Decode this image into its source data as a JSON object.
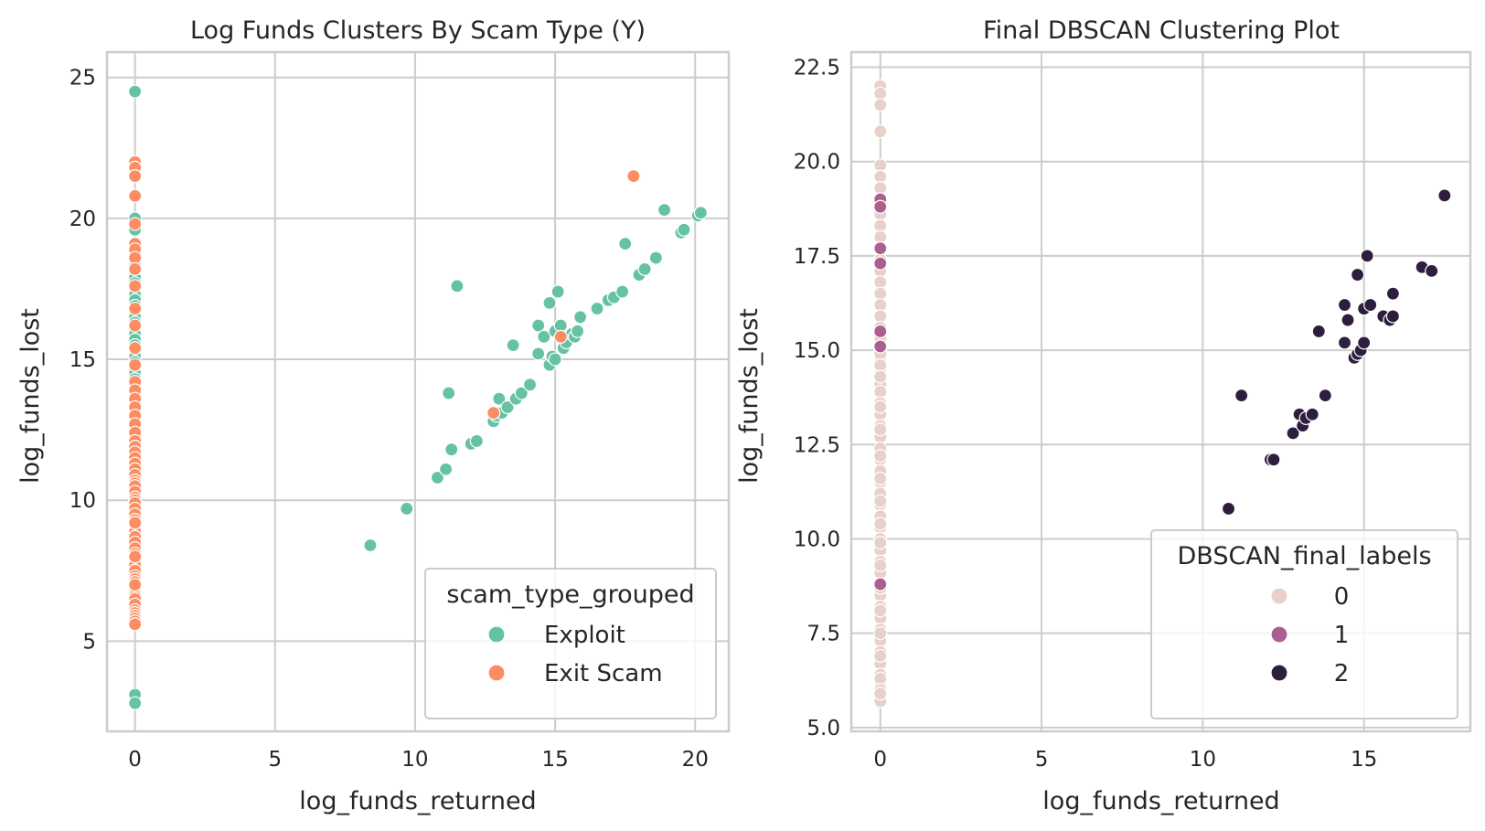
{
  "chart_data": [
    {
      "type": "scatter",
      "title": "Log Funds Clusters By Scam Type (Y)",
      "xlabel": "log_funds_returned",
      "ylabel": "log_funds_lost",
      "xlim": [
        -1.0,
        21.2
      ],
      "ylim": [
        1.8,
        25.9
      ],
      "xticks": [
        "0",
        "5",
        "10",
        "15",
        "20"
      ],
      "yticks": [
        "5",
        "10",
        "15",
        "20",
        "25"
      ],
      "grid": true,
      "legend": {
        "title": "scam_type_grouped",
        "placement": "bottom-right"
      },
      "series": [
        {
          "name": "Exploit",
          "color": "#66c2a5",
          "x": [
            0,
            0,
            0,
            0,
            0,
            0,
            0,
            0,
            0,
            0,
            0,
            0,
            0,
            0,
            0,
            0,
            0,
            0,
            0,
            0,
            0,
            0,
            0,
            0,
            0,
            0,
            0,
            0,
            0,
            0,
            0,
            0,
            0,
            0,
            0,
            0,
            0,
            0,
            0,
            0,
            0,
            0,
            0,
            0,
            0,
            0,
            0,
            0,
            0,
            0,
            0,
            0,
            0,
            0,
            0,
            0,
            0,
            0,
            0,
            0,
            0,
            0,
            0,
            0,
            0,
            8.4,
            9.7,
            10.8,
            11.1,
            11.2,
            11.3,
            11.5,
            12.0,
            12.2,
            12.8,
            12.9,
            13.0,
            13.1,
            13.3,
            13.5,
            13.6,
            13.8,
            14.1,
            14.4,
            14.4,
            14.6,
            14.8,
            14.8,
            14.9,
            15.0,
            15.0,
            15.1,
            15.2,
            15.3,
            15.4,
            15.6,
            15.7,
            15.8,
            15.9,
            16.5,
            16.9,
            17.1,
            17.4,
            17.5,
            18.0,
            18.2,
            18.6,
            18.9,
            19.5,
            19.6,
            20.1,
            20.2
          ],
          "y": [
            24.5,
            20.0,
            19.6,
            19.0,
            18.7,
            18.5,
            18.3,
            18.1,
            17.9,
            17.7,
            17.5,
            17.3,
            17.1,
            16.9,
            16.7,
            16.5,
            16.3,
            16.1,
            15.9,
            15.7,
            15.5,
            15.3,
            15.1,
            14.9,
            14.7,
            14.5,
            14.3,
            14.1,
            13.9,
            13.7,
            13.5,
            13.3,
            13.1,
            12.9,
            12.7,
            12.5,
            12.3,
            12.1,
            11.9,
            11.7,
            11.5,
            11.3,
            11.1,
            10.9,
            10.7,
            10.5,
            10.3,
            10.1,
            9.9,
            9.7,
            9.5,
            9.3,
            9.1,
            8.9,
            8.7,
            8.5,
            8.3,
            8.1,
            7.9,
            7.7,
            7.5,
            7.3,
            7.1,
            3.1,
            2.8,
            8.4,
            9.7,
            10.8,
            11.1,
            13.8,
            11.8,
            17.6,
            12.0,
            12.1,
            12.8,
            13.0,
            13.6,
            13.1,
            13.3,
            15.5,
            13.6,
            13.8,
            14.1,
            16.2,
            15.2,
            15.8,
            17.0,
            14.8,
            15.1,
            16.0,
            15.0,
            17.4,
            16.2,
            15.4,
            15.6,
            15.9,
            15.8,
            16.0,
            16.5,
            16.8,
            17.1,
            17.2,
            17.4,
            19.1,
            18.0,
            18.2,
            18.6,
            20.3,
            19.5,
            19.6,
            20.1,
            20.2
          ]
        },
        {
          "name": "Exit Scam",
          "color": "#fc8d62",
          "x": [
            0,
            0,
            0,
            0,
            0,
            0,
            0,
            0,
            0,
            0,
            0,
            0,
            0,
            0,
            0,
            0,
            0,
            0,
            0,
            0,
            0,
            0,
            0,
            0,
            0,
            0,
            0,
            0,
            0,
            0,
            0,
            0,
            0,
            0,
            0,
            0,
            0,
            0,
            0,
            0,
            0,
            0,
            0,
            0,
            0,
            0,
            0,
            0,
            0,
            0,
            0,
            0,
            0,
            0,
            0,
            0,
            0,
            0,
            0,
            0,
            0,
            0,
            0,
            0,
            0,
            12.8,
            15.2,
            17.8
          ],
          "y": [
            22.0,
            21.8,
            21.5,
            20.8,
            19.8,
            19.1,
            18.9,
            18.6,
            18.2,
            17.6,
            16.8,
            16.2,
            15.4,
            14.8,
            14.2,
            13.9,
            13.6,
            13.3,
            13.0,
            12.7,
            12.4,
            12.1,
            11.9,
            11.7,
            11.5,
            11.3,
            11.1,
            10.9,
            10.7,
            10.6,
            10.5,
            10.3,
            10.1,
            10.0,
            9.9,
            9.7,
            9.5,
            9.3,
            9.1,
            9.0,
            8.9,
            8.7,
            8.5,
            8.3,
            8.1,
            7.9,
            7.7,
            7.5,
            7.3,
            7.2,
            7.1,
            6.9,
            6.7,
            6.6,
            6.5,
            6.3,
            6.1,
            6.0,
            5.9,
            5.8,
            5.7,
            5.6,
            7.0,
            8.0,
            9.2,
            13.1,
            15.8,
            21.5
          ]
        }
      ]
    },
    {
      "type": "scatter",
      "title": "Final DBSCAN Clustering Plot",
      "xlabel": "log_funds_returned",
      "ylabel": "log_funds_lost",
      "xlim": [
        -0.9,
        18.3
      ],
      "ylim": [
        4.9,
        22.9
      ],
      "xticks": [
        "0",
        "5",
        "10",
        "15"
      ],
      "yticks": [
        "5.0",
        "7.5",
        "10.0",
        "12.5",
        "15.0",
        "17.5",
        "20.0",
        "22.5"
      ],
      "grid": true,
      "legend": {
        "title": "DBSCAN_final_labels",
        "placement": "bottom-right"
      },
      "series": [
        {
          "name": "0",
          "color": "#e8d0cb",
          "x": [
            0,
            0,
            0,
            0,
            0,
            0,
            0,
            0,
            0,
            0,
            0,
            0,
            0,
            0,
            0,
            0,
            0,
            0,
            0,
            0,
            0,
            0,
            0,
            0,
            0,
            0,
            0,
            0,
            0,
            0,
            0,
            0,
            0,
            0,
            0,
            0,
            0,
            0,
            0,
            0,
            0,
            0,
            0,
            0,
            0,
            0,
            0,
            0,
            0,
            0,
            0,
            0,
            0,
            0,
            0,
            0,
            0,
            0,
            0,
            0,
            0,
            0,
            0,
            0,
            0,
            0,
            0,
            0,
            0,
            0,
            0
          ],
          "y": [
            22.0,
            21.8,
            21.5,
            20.8,
            19.9,
            19.6,
            19.3,
            18.9,
            18.6,
            18.3,
            18.0,
            17.7,
            17.4,
            17.1,
            16.8,
            16.5,
            16.2,
            15.9,
            15.6,
            15.3,
            15.0,
            14.7,
            14.4,
            14.1,
            13.9,
            13.6,
            13.3,
            13.0,
            12.7,
            12.4,
            12.1,
            11.8,
            11.5,
            11.2,
            10.9,
            10.6,
            10.3,
            10.0,
            9.7,
            9.4,
            9.1,
            8.8,
            8.5,
            8.2,
            7.9,
            7.6,
            7.3,
            7.0,
            6.7,
            6.4,
            6.1,
            5.8,
            5.7,
            14.9,
            14.6,
            14.3,
            13.5,
            12.9,
            12.2,
            11.6,
            11.0,
            10.4,
            9.9,
            9.3,
            8.7,
            8.1,
            7.5,
            6.9,
            6.3,
            6.0,
            5.9
          ]
        },
        {
          "name": "1",
          "color": "#ac5f8e",
          "x": [
            0,
            0,
            0,
            0,
            0,
            0,
            0
          ],
          "y": [
            19.0,
            18.8,
            17.7,
            17.3,
            15.5,
            15.1,
            8.8
          ]
        },
        {
          "name": "2",
          "color": "#2d1e3e",
          "x": [
            10.8,
            11.2,
            12.1,
            12.2,
            12.8,
            13.0,
            13.1,
            13.2,
            13.4,
            13.6,
            13.8,
            14.4,
            14.4,
            14.5,
            14.7,
            14.8,
            14.8,
            14.9,
            15.0,
            15.0,
            15.1,
            15.2,
            15.6,
            15.8,
            15.9,
            15.9,
            16.8,
            17.1,
            17.5
          ],
          "y": [
            10.8,
            13.8,
            12.1,
            12.1,
            12.8,
            13.3,
            13.0,
            13.2,
            13.3,
            15.5,
            13.8,
            16.2,
            15.2,
            15.8,
            14.8,
            14.9,
            17.0,
            15.0,
            16.1,
            15.2,
            17.5,
            16.2,
            15.9,
            15.8,
            15.9,
            16.5,
            17.2,
            17.1,
            19.1
          ]
        }
      ]
    }
  ]
}
